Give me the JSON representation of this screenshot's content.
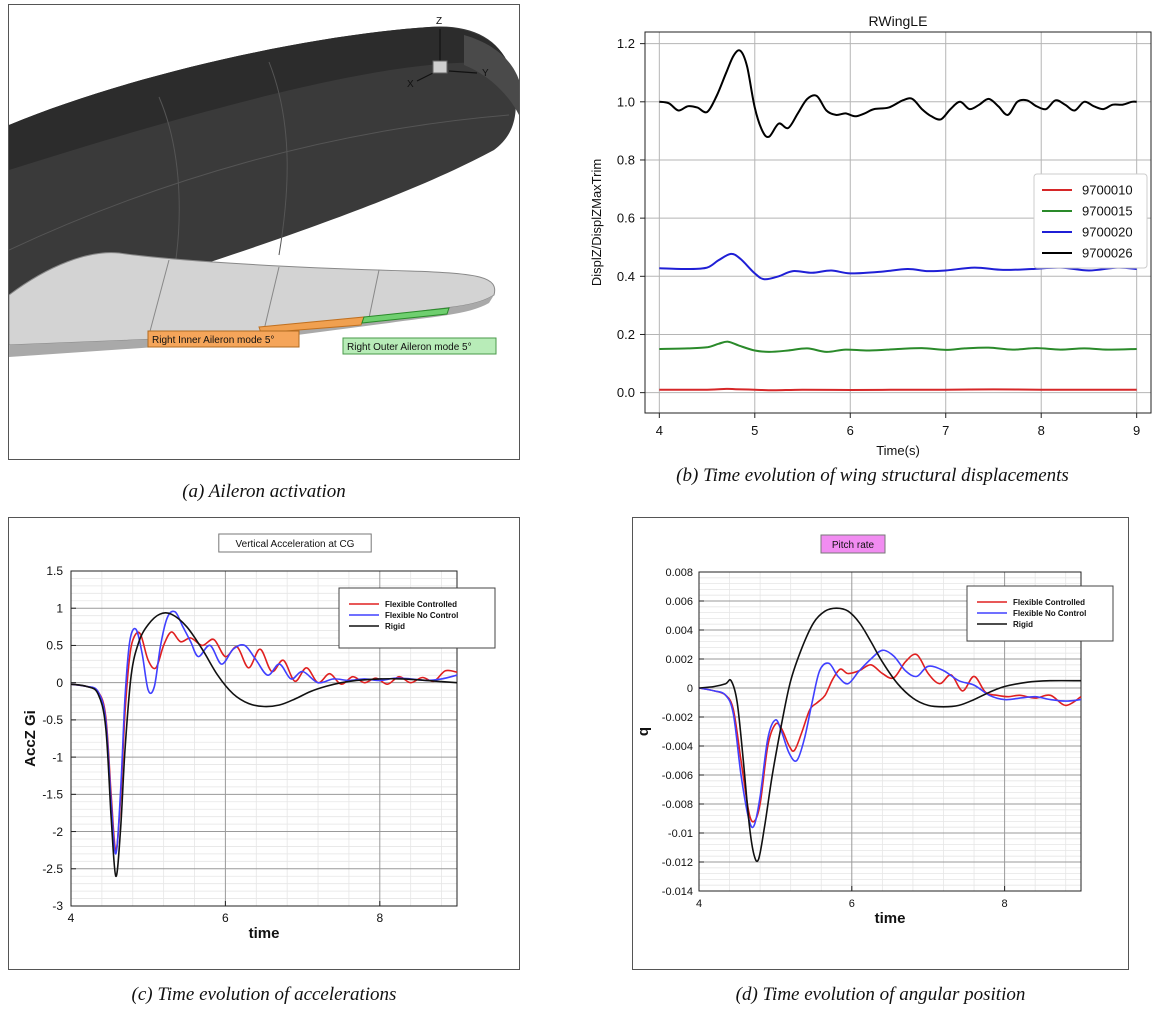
{
  "panel_a": {
    "caption": "(a) Aileron activation",
    "axis_z": "Z",
    "axis_x": "X",
    "axis_y": "Y",
    "label_inner": "Right Inner Aileron mode 5°",
    "label_outer": "Right Outer Aileron mode 5°",
    "colors": {
      "fuselage": "#3a3a3a",
      "wing": "#d6d6d6",
      "inner_label": "#f5a55a",
      "outer_label": "#b8ecb8"
    }
  },
  "chart_data": [
    {
      "type": "line",
      "id": "b",
      "caption": "(b) Time evolution of wing structural displacements",
      "title": "RWingLE",
      "xlabel": "Time(s)",
      "ylabel": "DisplZ/DisplZMaxTrim",
      "xlim": [
        3.85,
        9.15
      ],
      "ylim": [
        -0.07,
        1.24
      ],
      "xticks": [
        "4",
        "5",
        "6",
        "7",
        "8",
        "9"
      ],
      "xtick_values": [
        4,
        5,
        6,
        7,
        8,
        9
      ],
      "yticks": [
        "0.0",
        "0.2",
        "0.4",
        "0.6",
        "0.8",
        "1.0",
        "1.2"
      ],
      "ytick_values": [
        0,
        0.2,
        0.4,
        0.6,
        0.8,
        1.0,
        1.2
      ],
      "grid": true,
      "legend_position": "right",
      "series": [
        {
          "name": "9700010",
          "color": "#d62728",
          "x": [
            4,
            4.5,
            4.7,
            4.8,
            5.0,
            5.2,
            5.5,
            6,
            6.5,
            7,
            7.5,
            8,
            8.5,
            9
          ],
          "y": [
            0.01,
            0.01,
            0.013,
            0.012,
            0.01,
            0.008,
            0.01,
            0.009,
            0.01,
            0.01,
            0.011,
            0.01,
            0.01,
            0.01
          ]
        },
        {
          "name": "9700015",
          "color": "#2a8a2a",
          "x": [
            4,
            4.3,
            4.5,
            4.62,
            4.72,
            4.85,
            5.0,
            5.15,
            5.35,
            5.55,
            5.75,
            5.95,
            6.2,
            6.5,
            6.75,
            7.0,
            7.2,
            7.45,
            7.7,
            7.95,
            8.2,
            8.45,
            8.7,
            9
          ],
          "y": [
            0.15,
            0.152,
            0.156,
            0.168,
            0.175,
            0.16,
            0.145,
            0.14,
            0.145,
            0.152,
            0.14,
            0.148,
            0.145,
            0.15,
            0.153,
            0.147,
            0.152,
            0.155,
            0.148,
            0.153,
            0.148,
            0.152,
            0.148,
            0.15
          ]
        },
        {
          "name": "9700020",
          "color": "#1f1fd6",
          "x": [
            4,
            4.3,
            4.5,
            4.62,
            4.75,
            4.85,
            5.0,
            5.1,
            5.25,
            5.4,
            5.6,
            5.8,
            6.0,
            6.3,
            6.6,
            6.8,
            7.0,
            7.3,
            7.6,
            7.9,
            8.2,
            8.5,
            8.8,
            9
          ],
          "y": [
            0.428,
            0.425,
            0.43,
            0.455,
            0.477,
            0.46,
            0.41,
            0.39,
            0.4,
            0.418,
            0.412,
            0.42,
            0.41,
            0.415,
            0.425,
            0.418,
            0.42,
            0.43,
            0.422,
            0.425,
            0.43,
            0.42,
            0.43,
            0.425
          ]
        },
        {
          "name": "9700026",
          "color": "#000000",
          "x": [
            4,
            4.1,
            4.2,
            4.3,
            4.4,
            4.5,
            4.6,
            4.7,
            4.78,
            4.85,
            4.92,
            5.0,
            5.08,
            5.15,
            5.25,
            5.35,
            5.45,
            5.55,
            5.65,
            5.75,
            5.85,
            5.95,
            6.05,
            6.15,
            6.25,
            6.4,
            6.55,
            6.65,
            6.75,
            6.85,
            6.95,
            7.05,
            7.15,
            7.25,
            7.35,
            7.45,
            7.55,
            7.65,
            7.75,
            7.85,
            7.95,
            8.05,
            8.15,
            8.25,
            8.35,
            8.45,
            8.55,
            8.65,
            8.75,
            8.85,
            8.95,
            9.0
          ],
          "y": [
            1.0,
            0.995,
            0.97,
            0.985,
            0.98,
            0.965,
            1.02,
            1.1,
            1.16,
            1.175,
            1.12,
            0.98,
            0.9,
            0.88,
            0.925,
            0.91,
            0.96,
            1.01,
            1.02,
            0.97,
            0.955,
            0.96,
            0.95,
            0.96,
            0.975,
            0.98,
            1.005,
            1.01,
            0.975,
            0.95,
            0.94,
            0.975,
            1.0,
            0.975,
            0.99,
            1.01,
            0.985,
            0.955,
            1.0,
            1.005,
            0.985,
            0.975,
            1.005,
            0.99,
            0.97,
            1.0,
            0.985,
            0.975,
            0.99,
            0.99,
            1.0,
            1.0
          ]
        }
      ]
    },
    {
      "type": "line",
      "id": "c",
      "caption": "(c) Time evolution of accelerations",
      "title": "Vertical Acceleration at CG",
      "xlabel": "time",
      "ylabel": "AccZ Gi",
      "xlim": [
        4,
        9
      ],
      "ylim": [
        -3,
        1.5
      ],
      "xticks": [
        "4",
        "6",
        "8"
      ],
      "xtick_values": [
        4,
        6,
        8
      ],
      "yticks": [
        "-3",
        "-2.5",
        "-2",
        "-1.5",
        "-1",
        "-0.5",
        "0",
        "0.5",
        "1",
        "1.5"
      ],
      "ytick_values": [
        -3,
        -2.5,
        -2,
        -1.5,
        -1,
        -0.5,
        0,
        0.5,
        1,
        1.5
      ],
      "grid": true,
      "legend_position": "top-right",
      "series": [
        {
          "name": "Flexible Controlled",
          "color": "#e02020",
          "x": [
            4,
            4.2,
            4.35,
            4.45,
            4.52,
            4.58,
            4.64,
            4.7,
            4.76,
            4.82,
            4.9,
            5.0,
            5.1,
            5.2,
            5.3,
            5.42,
            5.55,
            5.7,
            5.85,
            6.0,
            6.15,
            6.3,
            6.45,
            6.6,
            6.75,
            6.9,
            7.05,
            7.2,
            7.35,
            7.5,
            7.65,
            7.8,
            7.95,
            8.1,
            8.25,
            8.4,
            8.55,
            8.7,
            8.85,
            9.0
          ],
          "y": [
            -0.02,
            -0.05,
            -0.12,
            -0.45,
            -1.5,
            -2.25,
            -1.6,
            -0.4,
            0.35,
            0.62,
            0.65,
            0.3,
            0.2,
            0.5,
            0.68,
            0.55,
            0.6,
            0.5,
            0.58,
            0.35,
            0.48,
            0.2,
            0.45,
            0.15,
            0.3,
            0.02,
            0.2,
            0.0,
            0.12,
            -0.02,
            0.08,
            0.0,
            0.06,
            -0.02,
            0.08,
            0.0,
            0.07,
            0.02,
            0.16,
            0.14
          ]
        },
        {
          "name": "Flexible No Control",
          "color": "#4040ff",
          "x": [
            4,
            4.2,
            4.35,
            4.45,
            4.52,
            4.58,
            4.64,
            4.7,
            4.76,
            4.84,
            4.92,
            5.0,
            5.08,
            5.16,
            5.25,
            5.35,
            5.45,
            5.55,
            5.65,
            5.8,
            5.95,
            6.1,
            6.25,
            6.4,
            6.55,
            6.7,
            6.85,
            7.0,
            7.2,
            7.4,
            7.6,
            7.8,
            8.0,
            8.2,
            8.4,
            8.6,
            8.8,
            9.0
          ],
          "y": [
            -0.02,
            -0.05,
            -0.12,
            -0.5,
            -1.6,
            -2.3,
            -1.5,
            -0.2,
            0.55,
            0.72,
            0.4,
            -0.1,
            -0.05,
            0.5,
            0.88,
            0.95,
            0.75,
            0.55,
            0.35,
            0.5,
            0.25,
            0.45,
            0.5,
            0.3,
            0.1,
            0.25,
            0.05,
            0.15,
            0.0,
            0.05,
            0.03,
            0.05,
            0.03,
            0.06,
            0.05,
            0.03,
            0.05,
            0.1
          ]
        },
        {
          "name": "Rigid",
          "color": "#111111",
          "x": [
            4,
            4.2,
            4.35,
            4.45,
            4.52,
            4.58,
            4.64,
            4.7,
            4.78,
            4.88,
            5.0,
            5.15,
            5.3,
            5.5,
            5.7,
            5.9,
            6.1,
            6.3,
            6.5,
            6.7,
            6.9,
            7.1,
            7.3,
            7.5,
            7.7,
            8.0,
            8.3,
            8.6,
            9.0
          ],
          "y": [
            -0.02,
            -0.05,
            -0.15,
            -0.6,
            -1.8,
            -2.6,
            -2.0,
            -0.9,
            0.1,
            0.55,
            0.78,
            0.92,
            0.92,
            0.75,
            0.45,
            0.1,
            -0.15,
            -0.28,
            -0.32,
            -0.3,
            -0.22,
            -0.12,
            -0.05,
            0.0,
            0.03,
            0.05,
            0.05,
            0.03,
            0.0
          ]
        }
      ]
    },
    {
      "type": "line",
      "id": "d",
      "caption": "(d) Time evolution of angular position",
      "title": "Pitch rate",
      "xlabel": "time",
      "ylabel": "q",
      "xlim": [
        4,
        9
      ],
      "ylim": [
        -0.014,
        0.008
      ],
      "xticks": [
        "4",
        "6",
        "8"
      ],
      "xtick_values": [
        4,
        6,
        8
      ],
      "yticks": [
        "-0.014",
        "-0.012",
        "-0.01",
        "-0.008",
        "-0.006",
        "-0.004",
        "-0.002",
        "0",
        "0.002",
        "0.004",
        "0.006",
        "0.008"
      ],
      "ytick_values": [
        -0.014,
        -0.012,
        -0.01,
        -0.008,
        -0.006,
        -0.004,
        -0.002,
        0,
        0.002,
        0.004,
        0.006,
        0.008
      ],
      "grid": true,
      "legend_position": "top-right",
      "series": [
        {
          "name": "Flexible Controlled",
          "color": "#e02020",
          "x": [
            4,
            4.2,
            4.35,
            4.45,
            4.55,
            4.65,
            4.72,
            4.8,
            4.9,
            5.0,
            5.08,
            5.18,
            5.25,
            5.35,
            5.45,
            5.55,
            5.65,
            5.75,
            5.85,
            5.95,
            6.1,
            6.25,
            6.4,
            6.55,
            6.7,
            6.85,
            7.0,
            7.15,
            7.3,
            7.45,
            7.6,
            7.75,
            7.9,
            8.05,
            8.2,
            8.4,
            8.6,
            8.8,
            9.0
          ],
          "y": [
            0,
            -0.0002,
            -0.0005,
            -0.0015,
            -0.005,
            -0.0085,
            -0.0092,
            -0.008,
            -0.004,
            -0.0025,
            -0.0028,
            -0.004,
            -0.0043,
            -0.003,
            -0.0015,
            -0.001,
            -0.0005,
            0.0006,
            0.0013,
            0.001,
            0.0012,
            0.0016,
            0.001,
            0.0007,
            0.0018,
            0.0023,
            0.001,
            0.0003,
            0.0009,
            -0.0002,
            0.0008,
            -0.0003,
            -0.0005,
            -0.0006,
            -0.0005,
            -0.0007,
            -0.0005,
            -0.0012,
            -0.0006
          ]
        },
        {
          "name": "Flexible No Control",
          "color": "#4040ff",
          "x": [
            4,
            4.2,
            4.35,
            4.45,
            4.55,
            4.65,
            4.72,
            4.8,
            4.9,
            5.0,
            5.08,
            5.18,
            5.28,
            5.38,
            5.48,
            5.58,
            5.7,
            5.82,
            5.95,
            6.1,
            6.25,
            6.4,
            6.55,
            6.7,
            6.85,
            7.0,
            7.2,
            7.4,
            7.6,
            7.8,
            8.0,
            8.2,
            8.4,
            8.6,
            8.8,
            9.0
          ],
          "y": [
            0,
            -0.0002,
            -0.0005,
            -0.0018,
            -0.006,
            -0.009,
            -0.0095,
            -0.0075,
            -0.0035,
            -0.0022,
            -0.003,
            -0.0045,
            -0.005,
            -0.0035,
            -0.001,
            0.0012,
            0.0017,
            0.0008,
            0.0003,
            0.0012,
            0.002,
            0.0026,
            0.0022,
            0.0012,
            0.0008,
            0.0015,
            0.0012,
            0.0005,
            0.0002,
            -0.0005,
            -0.0008,
            -0.0007,
            -0.0006,
            -0.0008,
            -0.0009,
            -0.0008
          ]
        },
        {
          "name": "Rigid",
          "color": "#111111",
          "x": [
            4,
            4.2,
            4.35,
            4.42,
            4.5,
            4.58,
            4.66,
            4.72,
            4.78,
            4.86,
            4.96,
            5.08,
            5.2,
            5.35,
            5.5,
            5.65,
            5.8,
            5.95,
            6.1,
            6.25,
            6.4,
            6.6,
            6.8,
            7.0,
            7.2,
            7.4,
            7.6,
            7.8,
            8.0,
            8.3,
            8.6,
            9.0
          ],
          "y": [
            0,
            0.0001,
            0.0003,
            0.0005,
            -0.001,
            -0.005,
            -0.0095,
            -0.0115,
            -0.0118,
            -0.0095,
            -0.006,
            -0.0025,
            0.0005,
            0.0028,
            0.0045,
            0.0053,
            0.0055,
            0.0053,
            0.0045,
            0.0032,
            0.0018,
            0.0003,
            -0.0007,
            -0.0012,
            -0.0013,
            -0.0012,
            -0.0008,
            -0.0003,
            0.0001,
            0.0004,
            0.0005,
            0.0005
          ]
        }
      ]
    }
  ]
}
